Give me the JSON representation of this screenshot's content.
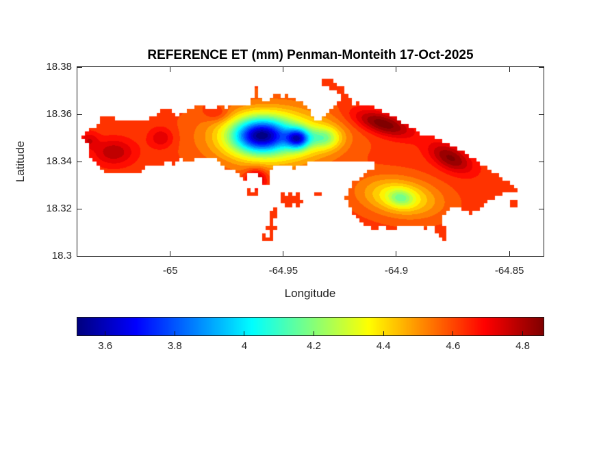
{
  "figure": {
    "title": "REFERENCE ET (mm) Penman-Monteith 17-Oct-2025",
    "background": "#ffffff"
  },
  "colors": {
    "title": "#000000",
    "axis_line": "#151515",
    "tick_label": "#262626",
    "background": "#ffffff"
  },
  "chart_data": {
    "type": "heatmap",
    "subtype": "filled-contour-map",
    "title": "REFERENCE ET (mm) Penman-Monteith 17-Oct-2025",
    "units": "mm",
    "date": "17-Oct-2025",
    "xlabel": "Longitude",
    "ylabel": "Latitude",
    "xlim": [
      -65.0411,
      -64.8349
    ],
    "ylim": [
      18.3,
      18.38
    ],
    "xticks": [
      -65,
      -64.95,
      -64.9,
      -64.85
    ],
    "xtick_labels": [
      "-65",
      "-64.95",
      "-64.9",
      "-64.85"
    ],
    "yticks": [
      18.38,
      18.36,
      18.34,
      18.32,
      18.3
    ],
    "ytick_labels": [
      "18.38",
      "18.36",
      "18.34",
      "18.32",
      "18.3"
    ],
    "grid": false,
    "contour_interval": 0.05,
    "mask_grid": [
      124,
      50
    ],
    "colorbar": {
      "orientation": "horizontal",
      "colormap": "jet",
      "clim": [
        3.52,
        4.86
      ],
      "ticks": [
        3.6,
        3.8,
        4,
        4.2,
        4.4,
        4.6,
        4.8
      ],
      "tick_labels": [
        "3.6",
        "3.8",
        "4",
        "4.2",
        "4.4",
        "4.6",
        "4.8"
      ],
      "colors": [
        "#000080",
        "#0000ff",
        "#00ffff",
        "#ffff00",
        "#ff0000",
        "#800000"
      ],
      "stop_positions": [
        0,
        0.125,
        0.375,
        0.625,
        0.875,
        1
      ]
    },
    "field": {
      "base": 4.62,
      "sources": [
        {
          "cx": -64.955,
          "cy": 18.3505,
          "amp": -0.4,
          "sx": 0.026,
          "sy": 0.012,
          "rot": 0
        },
        {
          "cx": -64.96,
          "cy": 18.351,
          "amp": -0.72,
          "sx": 0.012,
          "sy": 0.007,
          "rot": 0
        },
        {
          "cx": -64.9435,
          "cy": 18.3497,
          "amp": -0.6,
          "sx": 0.005,
          "sy": 0.0042,
          "rot": 0
        },
        {
          "cx": -64.932,
          "cy": 18.35,
          "amp": -0.28,
          "sx": 0.007,
          "sy": 0.0045,
          "rot": 0
        },
        {
          "cx": -64.898,
          "cy": 18.3245,
          "amp": -0.18,
          "sx": 0.0055,
          "sy": 0.0035,
          "rot": -8
        },
        {
          "cx": -64.8985,
          "cy": 18.325,
          "amp": -0.28,
          "sx": 0.017,
          "sy": 0.0078,
          "rot": -8
        },
        {
          "cx": -64.906,
          "cy": 18.356,
          "amp": 0.27,
          "sx": 0.013,
          "sy": 0.0045,
          "rot": -16
        },
        {
          "cx": -64.876,
          "cy": 18.3415,
          "amp": 0.24,
          "sx": 0.01,
          "sy": 0.005,
          "rot": -25
        },
        {
          "cx": -65.025,
          "cy": 18.344,
          "amp": 0.17,
          "sx": 0.009,
          "sy": 0.0055,
          "rot": 0
        },
        {
          "cx": -65.004,
          "cy": 18.35,
          "amp": 0.13,
          "sx": 0.0055,
          "sy": 0.0045,
          "rot": 0
        },
        {
          "cx": -64.962,
          "cy": 18.333,
          "amp": 0.22,
          "sx": 0.0045,
          "sy": 0.004,
          "rot": 0
        },
        {
          "cx": -64.979,
          "cy": 18.36,
          "amp": 0.1,
          "sx": 0.006,
          "sy": 0.0035,
          "rot": 0
        },
        {
          "cx": -65.036,
          "cy": 18.349,
          "amp": 0.12,
          "sx": 0.004,
          "sy": 0.0035,
          "rot": 0
        }
      ]
    },
    "island_outline": [
      [
        -65.0398,
        18.3498
      ],
      [
        -65.0365,
        18.3524
      ],
      [
        -65.0362,
        18.355
      ],
      [
        -65.0317,
        18.3553
      ],
      [
        -65.0308,
        18.3584
      ],
      [
        -65.0251,
        18.359
      ],
      [
        -65.0229,
        18.3567
      ],
      [
        -65.0175,
        18.3581
      ],
      [
        -65.0115,
        18.3576
      ],
      [
        -65.006,
        18.3596
      ],
      [
        -65.0045,
        18.3624
      ],
      [
        -64.9994,
        18.3619
      ],
      [
        -64.9973,
        18.3599
      ],
      [
        -64.9934,
        18.3604
      ],
      [
        -64.9912,
        18.3627
      ],
      [
        -64.9852,
        18.3642
      ],
      [
        -64.9834,
        18.3624
      ],
      [
        -64.9789,
        18.3636
      ],
      [
        -64.9747,
        18.363
      ],
      [
        -64.9707,
        18.3642
      ],
      [
        -64.9641,
        18.3647
      ],
      [
        -64.9632,
        18.3711
      ],
      [
        -64.9608,
        18.3717
      ],
      [
        -64.9602,
        18.3653
      ],
      [
        -64.9557,
        18.3665
      ],
      [
        -64.9532,
        18.3685
      ],
      [
        -64.9505,
        18.3676
      ],
      [
        -64.9484,
        18.3688
      ],
      [
        -64.946,
        18.3668
      ],
      [
        -64.943,
        18.3653
      ],
      [
        -64.9396,
        18.3633
      ],
      [
        -64.9375,
        18.3596
      ],
      [
        -64.9354,
        18.3576
      ],
      [
        -64.933,
        18.3584
      ],
      [
        -64.9309,
        18.361
      ],
      [
        -64.9282,
        18.3633
      ],
      [
        -64.9258,
        18.3656
      ],
      [
        -64.924,
        18.3682
      ],
      [
        -64.9224,
        18.3696
      ],
      [
        -64.9206,
        18.3676
      ],
      [
        -64.9203,
        18.3642
      ],
      [
        -64.9173,
        18.365
      ],
      [
        -64.9143,
        18.3633
      ],
      [
        -64.9104,
        18.3639
      ],
      [
        -64.9064,
        18.3619
      ],
      [
        -64.9022,
        18.3599
      ],
      [
        -64.8974,
        18.3567
      ],
      [
        -64.8937,
        18.3544
      ],
      [
        -64.8901,
        18.3524
      ],
      [
        -64.8871,
        18.3506
      ],
      [
        -64.8846,
        18.3518
      ],
      [
        -64.881,
        18.3495
      ],
      [
        -64.8771,
        18.3472
      ],
      [
        -64.872,
        18.3449
      ],
      [
        -64.8666,
        18.342
      ],
      [
        -64.8621,
        18.3388
      ],
      [
        -64.8569,
        18.3357
      ],
      [
        -64.8521,
        18.3325
      ],
      [
        -64.8485,
        18.3302
      ],
      [
        -64.8464,
        18.3279
      ],
      [
        -64.8491,
        18.3265
      ],
      [
        -64.853,
        18.3271
      ],
      [
        -64.856,
        18.325
      ],
      [
        -64.8599,
        18.3227
      ],
      [
        -64.8636,
        18.3193
      ],
      [
        -64.8672,
        18.3178
      ],
      [
        -64.8708,
        18.3196
      ],
      [
        -64.8741,
        18.3216
      ],
      [
        -64.8771,
        18.3193
      ],
      [
        -64.878,
        18.3181
      ],
      [
        -64.8801,
        18.3158
      ],
      [
        -64.8786,
        18.3118
      ],
      [
        -64.878,
        18.3075
      ],
      [
        -64.8792,
        18.3055
      ],
      [
        -64.8807,
        18.3078
      ],
      [
        -64.8825,
        18.3101
      ],
      [
        -64.8846,
        18.313
      ],
      [
        -64.8871,
        18.3115
      ],
      [
        -64.8901,
        18.313
      ],
      [
        -64.8937,
        18.3124
      ],
      [
        -64.8973,
        18.313
      ],
      [
        -64.9013,
        18.3112
      ],
      [
        -64.9058,
        18.3121
      ],
      [
        -64.9104,
        18.3118
      ],
      [
        -64.9143,
        18.3138
      ],
      [
        -64.9173,
        18.3164
      ],
      [
        -64.9194,
        18.3181
      ],
      [
        -64.9209,
        18.3216
      ],
      [
        -64.9224,
        18.325
      ],
      [
        -64.9212,
        18.3285
      ],
      [
        -64.9188,
        18.3314
      ],
      [
        -64.9155,
        18.334
      ],
      [
        -64.9119,
        18.3365
      ],
      [
        -64.9092,
        18.3386
      ],
      [
        -64.911,
        18.34
      ],
      [
        -64.9149,
        18.3394
      ],
      [
        -64.9191,
        18.3406
      ],
      [
        -64.9224,
        18.3394
      ],
      [
        -64.9264,
        18.3403
      ],
      [
        -64.9306,
        18.34
      ],
      [
        -64.9345,
        18.3394
      ],
      [
        -64.9384,
        18.3406
      ],
      [
        -64.9405,
        18.3386
      ],
      [
        -64.943,
        18.338
      ],
      [
        -64.9457,
        18.3371
      ],
      [
        -64.9487,
        18.3386
      ],
      [
        -64.9511,
        18.3394
      ],
      [
        -64.9535,
        18.3377
      ],
      [
        -64.9559,
        18.3371
      ],
      [
        -64.9571,
        18.3345
      ],
      [
        -64.9565,
        18.3314
      ],
      [
        -64.9586,
        18.3302
      ],
      [
        -64.9604,
        18.3337
      ],
      [
        -64.9626,
        18.3357
      ],
      [
        -64.965,
        18.3363
      ],
      [
        -64.9671,
        18.3325
      ],
      [
        -64.9695,
        18.3334
      ],
      [
        -64.9713,
        18.336
      ],
      [
        -64.974,
        18.3365
      ],
      [
        -64.9767,
        18.3371
      ],
      [
        -64.9789,
        18.3406
      ],
      [
        -64.9816,
        18.3423
      ],
      [
        -64.9846,
        18.3411
      ],
      [
        -64.9879,
        18.342
      ],
      [
        -64.9915,
        18.34
      ],
      [
        -64.9955,
        18.3409
      ],
      [
        -64.9988,
        18.3391
      ],
      [
        -65.0018,
        18.34
      ],
      [
        -65.0054,
        18.338
      ],
      [
        -65.0097,
        18.3391
      ],
      [
        -65.0127,
        18.336
      ],
      [
        -65.0166,
        18.3345
      ],
      [
        -65.0205,
        18.336
      ],
      [
        -65.0248,
        18.3345
      ],
      [
        -65.0287,
        18.336
      ],
      [
        -65.0317,
        18.3386
      ],
      [
        -65.0362,
        18.3414
      ],
      [
        -65.0353,
        18.3452
      ],
      [
        -65.038,
        18.3486
      ]
    ],
    "islets": [
      [
        [
          -64.9327,
          18.375
        ],
        [
          -64.9309,
          18.375
        ],
        [
          -64.9309,
          18.3734
        ],
        [
          -64.9327,
          18.3734
        ]
      ],
      [
        [
          -64.9305,
          18.3739
        ],
        [
          -64.9287,
          18.3739
        ],
        [
          -64.9287,
          18.3723
        ],
        [
          -64.9305,
          18.3723
        ]
      ],
      [
        [
          -64.9284,
          18.3727
        ],
        [
          -64.9266,
          18.3727
        ],
        [
          -64.9266,
          18.3711
        ],
        [
          -64.9284,
          18.3711
        ]
      ],
      [
        [
          -64.9263,
          18.3716
        ],
        [
          -64.9245,
          18.3716
        ],
        [
          -64.9245,
          18.37
        ],
        [
          -64.9263,
          18.37
        ]
      ],
      [
        [
          -64.965,
          18.3272
        ],
        [
          -64.9626,
          18.3272
        ],
        [
          -64.9626,
          18.3258
        ],
        [
          -64.965,
          18.3258
        ]
      ],
      [
        [
          -64.9505,
          18.3256
        ],
        [
          -64.9475,
          18.3268
        ],
        [
          -64.9442,
          18.3259
        ],
        [
          -64.9423,
          18.3239
        ],
        [
          -64.9445,
          18.3219
        ],
        [
          -64.9481,
          18.3213
        ],
        [
          -64.9505,
          18.323
        ]
      ],
      [
        [
          -64.9556,
          18.3187
        ],
        [
          -64.9538,
          18.3193
        ],
        [
          -64.9532,
          18.3164
        ],
        [
          -64.9547,
          18.3147
        ],
        [
          -64.9538,
          18.3124
        ],
        [
          -64.9553,
          18.3101
        ],
        [
          -64.9568,
          18.3127
        ],
        [
          -64.9559,
          18.3161
        ]
      ],
      [
        [
          -64.9587,
          18.3084
        ],
        [
          -64.9555,
          18.3084
        ],
        [
          -64.9555,
          18.3072
        ],
        [
          -64.9587,
          18.3072
        ]
      ],
      [
        [
          -64.9353,
          18.3268
        ],
        [
          -64.9337,
          18.3268
        ],
        [
          -64.9337,
          18.3256
        ],
        [
          -64.9353,
          18.3256
        ]
      ],
      [
        [
          -64.8496,
          18.3225
        ],
        [
          -64.848,
          18.3225
        ],
        [
          -64.848,
          18.3213
        ],
        [
          -64.8496,
          18.3213
        ]
      ]
    ]
  }
}
